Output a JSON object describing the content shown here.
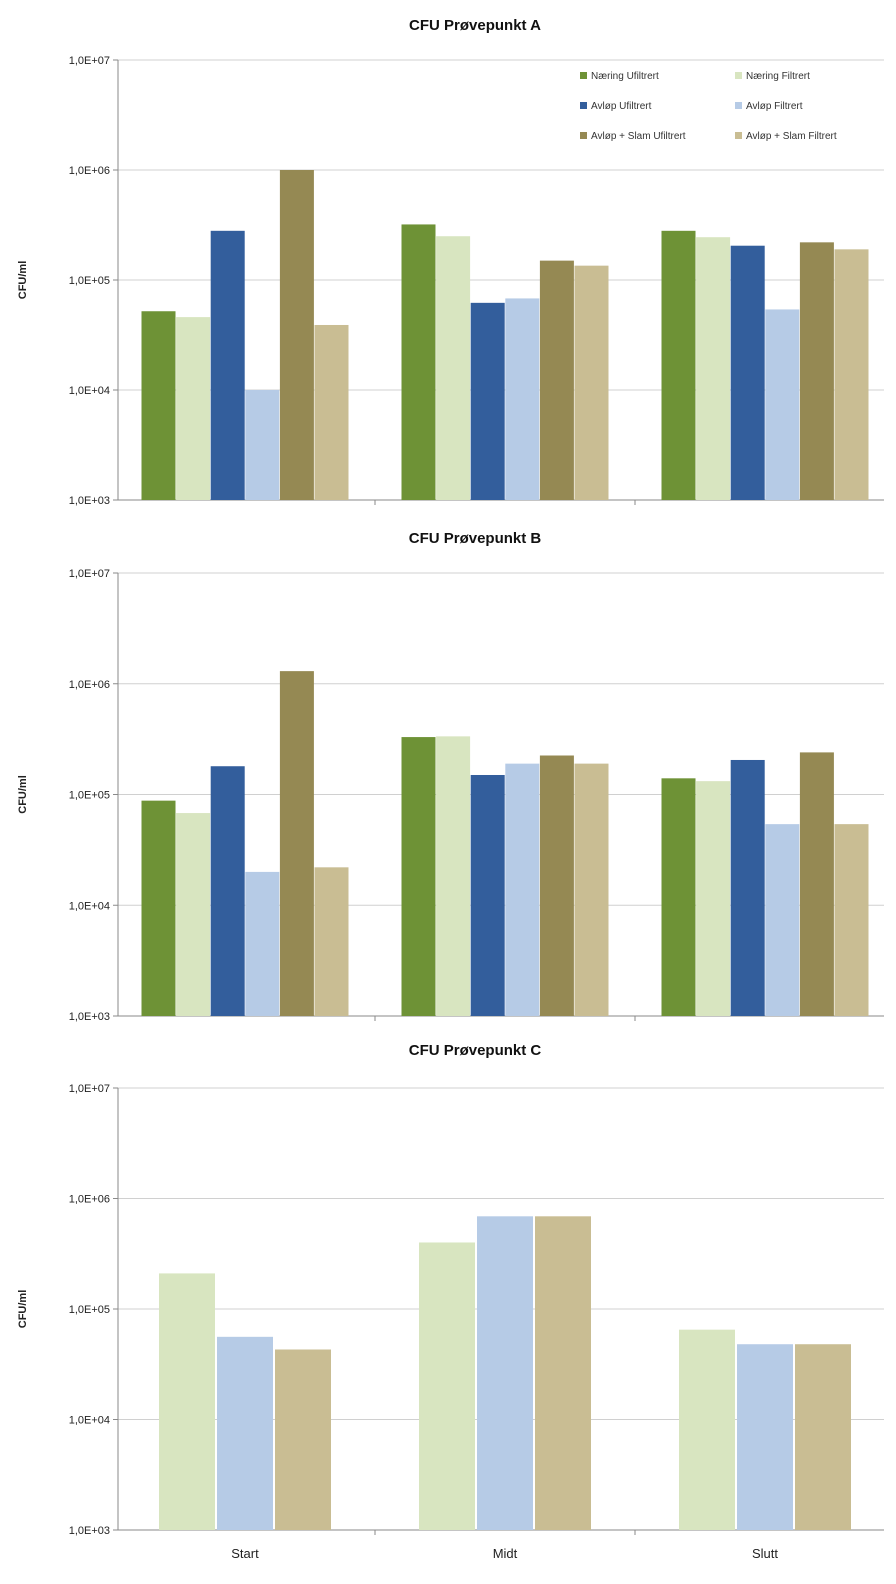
{
  "chart_data": [
    {
      "type": "bar",
      "title": "CFU Prøvepunkt A",
      "ylabel": "CFU/ml",
      "xlabel": "",
      "yscale": "log",
      "ylim": [
        1000,
        10000000
      ],
      "yticks": [
        "1,0E+03",
        "1,0E+04",
        "1,0E+05",
        "1,0E+06",
        "1,0E+07"
      ],
      "categories": [
        "",
        "",
        ""
      ],
      "grid": true,
      "legend": "top-right",
      "series": [
        {
          "name": "Næring Ufiltrert",
          "color": "#6e9236",
          "values": [
            52000,
            320000,
            280000
          ]
        },
        {
          "name": "Næring Filtrert",
          "color": "#d8e5c0",
          "values": [
            46000,
            250000,
            245000
          ]
        },
        {
          "name": "Avløp Ufiltrert",
          "color": "#335e9c",
          "values": [
            280000,
            62000,
            205000
          ]
        },
        {
          "name": "Avløp Filtrert",
          "color": "#b6cbe6",
          "values": [
            10000,
            68000,
            54000
          ]
        },
        {
          "name": "Avløp + Slam Ufiltrert",
          "color": "#958953",
          "values": [
            1000000,
            150000,
            220000
          ]
        },
        {
          "name": "Avløp + Slam Filtrert",
          "color": "#c9bd93",
          "values": [
            39000,
            135000,
            190000
          ]
        }
      ]
    },
    {
      "type": "bar",
      "title": "CFU Prøvepunkt B",
      "ylabel": "CFU/ml",
      "xlabel": "",
      "yscale": "log",
      "ylim": [
        1000,
        10000000
      ],
      "yticks": [
        "1,0E+03",
        "1,0E+04",
        "1,0E+05",
        "1,0E+06",
        "1,0E+07"
      ],
      "categories": [
        "",
        "",
        ""
      ],
      "grid": true,
      "series": [
        {
          "color": "#6e9236",
          "values": [
            88000,
            330000,
            140000
          ]
        },
        {
          "color": "#d8e5c0",
          "values": [
            68000,
            335000,
            132000
          ]
        },
        {
          "color": "#335e9c",
          "values": [
            180000,
            150000,
            205000
          ]
        },
        {
          "color": "#b6cbe6",
          "values": [
            20000,
            190000,
            54000
          ]
        },
        {
          "color": "#958953",
          "values": [
            1300000,
            225000,
            240000
          ]
        },
        {
          "color": "#c9bd93",
          "values": [
            22000,
            190000,
            54000
          ]
        }
      ]
    },
    {
      "type": "bar",
      "title": "CFU Prøvepunkt C",
      "ylabel": "CFU/ml",
      "xlabel": "",
      "yscale": "log",
      "ylim": [
        1000,
        10000000
      ],
      "yticks": [
        "1,0E+03",
        "1,0E+04",
        "1,0E+05",
        "1,0E+06",
        "1,0E+07"
      ],
      "categories": [
        "Start",
        "Midt",
        "Slutt"
      ],
      "grid": true,
      "series": [
        {
          "color": "#d8e5c0",
          "values": [
            210000,
            400000,
            65000
          ]
        },
        {
          "color": "#b6cbe6",
          "values": [
            56000,
            690000,
            48000
          ]
        },
        {
          "color": "#c9bd93",
          "values": [
            43000,
            690000,
            48000
          ]
        }
      ]
    }
  ]
}
